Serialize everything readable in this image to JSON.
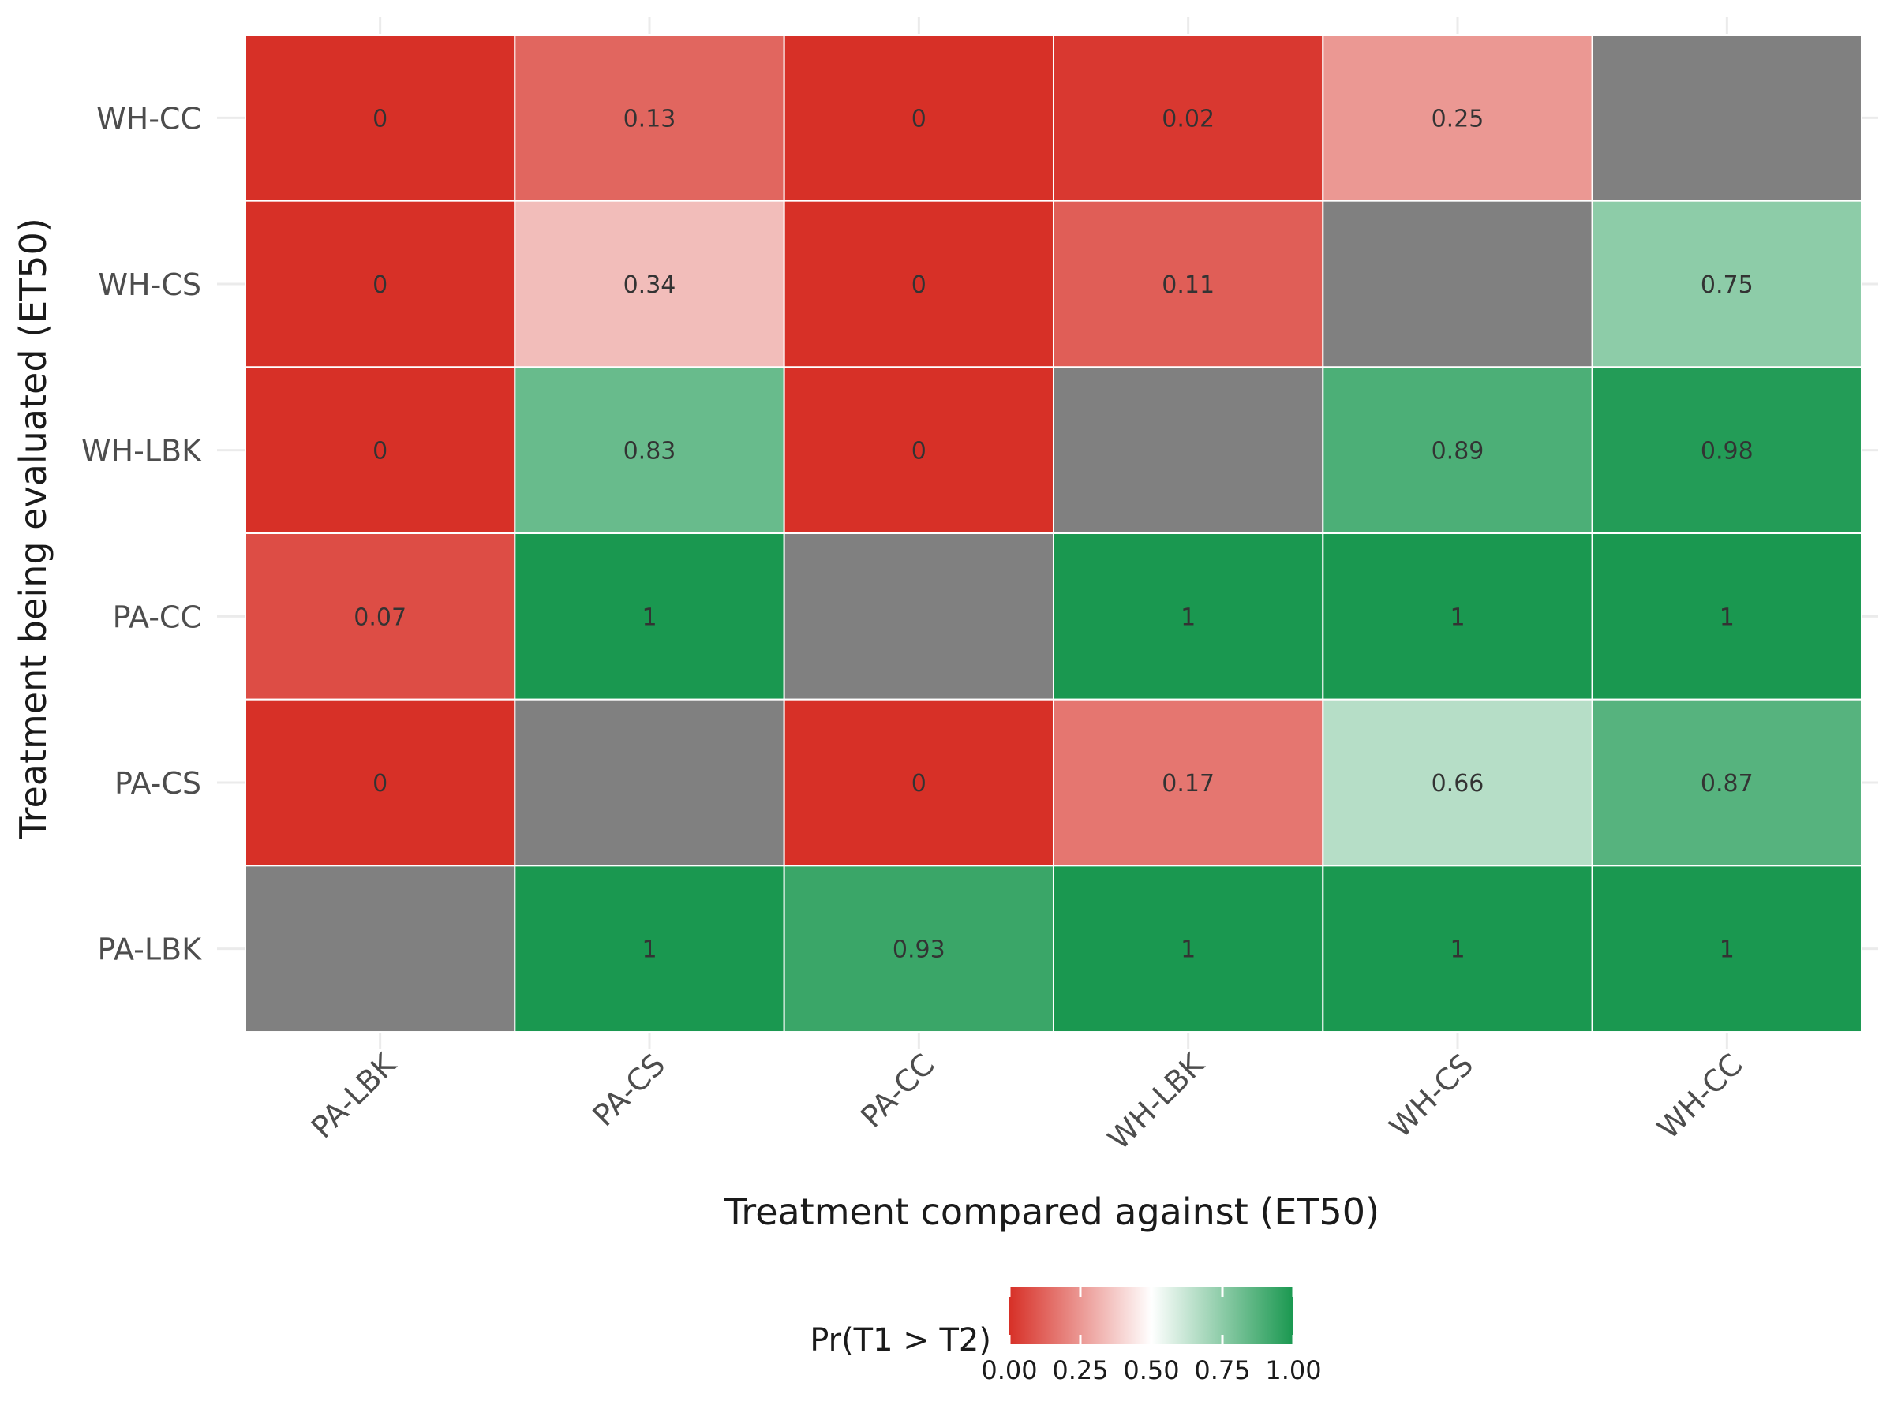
{
  "chart_data": {
    "type": "heatmap",
    "xlabel": "Treatment compared against (ET50)",
    "ylabel": "Treatment being evaluated (ET50)",
    "x_categories": [
      "PA-LBK",
      "PA-CS",
      "PA-CC",
      "WH-LBK",
      "WH-CS",
      "WH-CC"
    ],
    "y_categories": [
      "WH-CC",
      "WH-CS",
      "WH-LBK",
      "PA-CC",
      "PA-CS",
      "PA-LBK"
    ],
    "values": [
      [
        0,
        0.13,
        0,
        0.02,
        0.25,
        null
      ],
      [
        0,
        0.34,
        0,
        0.11,
        null,
        0.75
      ],
      [
        0,
        0.83,
        0,
        null,
        0.89,
        0.98
      ],
      [
        0.07,
        1,
        null,
        1,
        1,
        1
      ],
      [
        0,
        null,
        0,
        0.17,
        0.66,
        0.87
      ],
      [
        null,
        1,
        0.93,
        1,
        1,
        1
      ]
    ],
    "missing_color": "#808080",
    "color_scale": {
      "low": "#d73027",
      "mid": "#ffffff",
      "high": "#1a9850",
      "domain": [
        0,
        0.5,
        1
      ]
    },
    "legend": {
      "title": "Pr(T1 > T2)",
      "ticks": [
        "0.00",
        "0.25",
        "0.50",
        "0.75",
        "1.00"
      ],
      "tick_values": [
        0,
        0.25,
        0.5,
        0.75,
        1
      ],
      "placement": "bottom"
    },
    "grid": true
  }
}
